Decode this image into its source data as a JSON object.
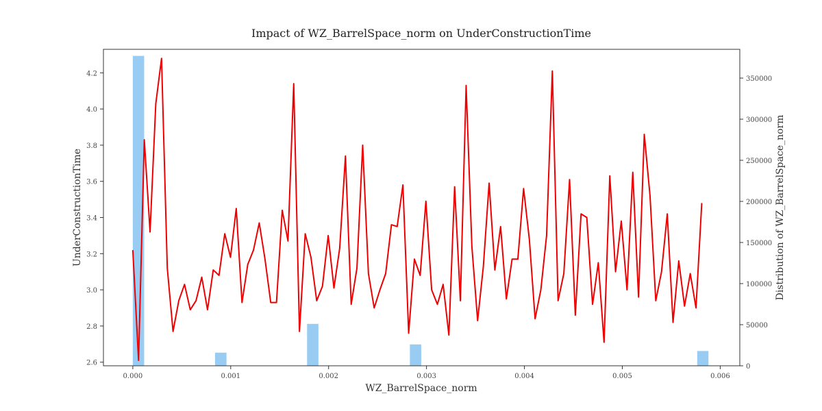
{
  "chart_data": {
    "type": "line",
    "title": "Impact of WZ_BarrelSpace_norm on UnderConstructionTime",
    "xlabel": "WZ_BarrelSpace_norm",
    "ylabel": "UnderConstructionTime",
    "y2label": "Distribution of WZ_BarrelSpace_norm",
    "xlim": [
      -0.0003,
      0.0062
    ],
    "ylim": [
      2.58,
      4.33
    ],
    "y2lim": [
      0,
      385000
    ],
    "x_ticks": [
      "0.000",
      "0.001",
      "0.002",
      "0.003",
      "0.004",
      "0.005",
      "0.006"
    ],
    "x_tick_values": [
      0,
      0.001,
      0.002,
      0.003,
      0.004,
      0.005,
      0.006
    ],
    "y_ticks": [
      "2.6",
      "2.8",
      "3.0",
      "3.2",
      "3.4",
      "3.6",
      "3.8",
      "4.0",
      "4.2"
    ],
    "y_tick_values": [
      2.6,
      2.8,
      3.0,
      3.2,
      3.4,
      3.6,
      3.8,
      4.0,
      4.2
    ],
    "y2_ticks": [
      "0",
      "50000",
      "100000",
      "150000",
      "200000",
      "250000",
      "300000",
      "350000"
    ],
    "y2_tick_values": [
      0,
      50000,
      100000,
      150000,
      200000,
      250000,
      300000,
      350000
    ],
    "colors": {
      "line": "#ee0000",
      "bars": "#99ccf2",
      "axis": "#333333"
    },
    "series": [
      {
        "type": "line",
        "x_start": 0.0,
        "x_step": 5.87e-05,
        "values": [
          3.22,
          2.61,
          3.83,
          3.32,
          4.03,
          4.28,
          3.12,
          2.77,
          2.94,
          3.03,
          2.89,
          2.94,
          3.07,
          2.89,
          3.11,
          3.08,
          3.31,
          3.18,
          3.45,
          2.93,
          3.14,
          3.22,
          3.37,
          3.17,
          2.93,
          2.93,
          3.44,
          3.27,
          4.14,
          2.77,
          3.31,
          3.18,
          2.94,
          3.02,
          3.3,
          3.01,
          3.23,
          3.74,
          2.92,
          3.12,
          3.8,
          3.09,
          2.9,
          3.0,
          3.09,
          3.36,
          3.35,
          3.58,
          2.76,
          3.17,
          3.08,
          3.49,
          3.0,
          2.92,
          3.03,
          2.75,
          3.57,
          2.94,
          4.13,
          3.24,
          2.83,
          3.13,
          3.59,
          3.11,
          3.35,
          2.95,
          3.17,
          3.17,
          3.56,
          3.28,
          2.84,
          3.0,
          3.3,
          4.21,
          2.94,
          3.09,
          3.61,
          2.86,
          3.42,
          3.4,
          2.92,
          3.15,
          2.71,
          3.63,
          3.1,
          3.38,
          3.0,
          3.65,
          2.96,
          3.86,
          3.52,
          2.94,
          3.1,
          3.42,
          2.82,
          3.16,
          2.91,
          3.09,
          2.9,
          3.48
        ]
      }
    ],
    "histogram": [
      {
        "x_from": 0.0,
        "x_to": 0.000116,
        "value": 377000
      },
      {
        "x_from": 0.00084,
        "x_to": 0.000957,
        "value": 16000
      },
      {
        "x_from": 0.00178,
        "x_to": 0.001896,
        "value": 51000
      },
      {
        "x_from": 0.00283,
        "x_to": 0.002946,
        "value": 26000
      },
      {
        "x_from": 0.005765,
        "x_to": 0.00588,
        "value": 18000
      }
    ]
  }
}
